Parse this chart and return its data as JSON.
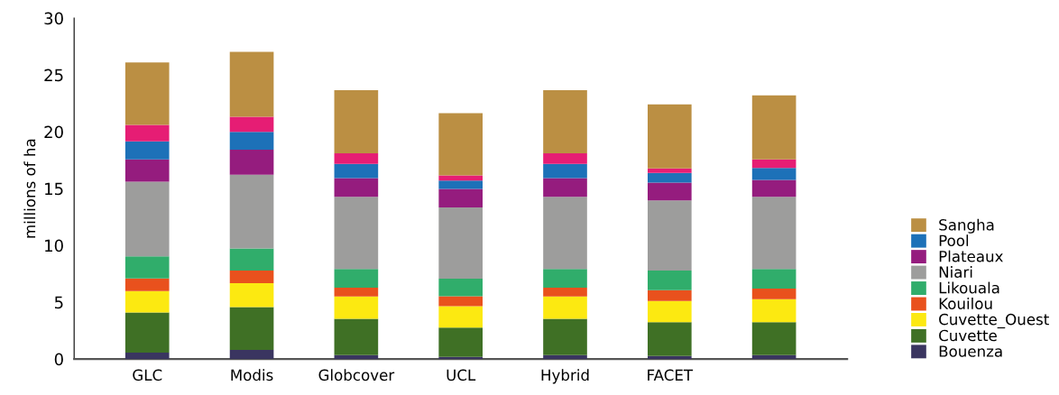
{
  "chart_data": {
    "type": "bar",
    "stacked": true,
    "ylabel": "millions of ha",
    "categories": [
      "GLC",
      "Modis",
      "Globcover",
      "UCL",
      "Hybrid",
      "FACET",
      null
    ],
    "ylim": [
      0,
      30
    ],
    "yticks": [
      0,
      5,
      10,
      15,
      20,
      25,
      30
    ],
    "grid": false,
    "legend": "right",
    "series": [
      {
        "name": "Bouenza",
        "color": "#3a3560",
        "values": [
          0.57,
          0.81,
          0.34,
          0.18,
          0.34,
          0.26,
          0.34
        ]
      },
      {
        "name": "Cuvette",
        "color": "#3f7025",
        "values": [
          3.53,
          3.76,
          3.21,
          2.59,
          3.21,
          2.98,
          2.9
        ]
      },
      {
        "name": "Cuvette_Ouest",
        "color": "#fce911",
        "values": [
          1.88,
          2.11,
          1.96,
          1.88,
          1.96,
          1.88,
          2.03
        ]
      },
      {
        "name": "Kouilou",
        "color": "#e9511d",
        "values": [
          1.12,
          1.1,
          0.78,
          0.88,
          0.78,
          0.94,
          0.94
        ]
      },
      {
        "name": "Likouala",
        "color": "#30ad6b",
        "values": [
          1.93,
          1.95,
          1.64,
          1.54,
          1.64,
          1.72,
          1.72
        ]
      },
      {
        "name": "Niari",
        "color": "#9d9d9c",
        "values": [
          6.57,
          6.5,
          6.35,
          6.27,
          6.35,
          6.18,
          6.35
        ]
      },
      {
        "name": "Plateaux",
        "color": "#951c7e",
        "values": [
          1.97,
          2.2,
          1.64,
          1.64,
          1.64,
          1.57,
          1.48
        ]
      },
      {
        "name": "Pool",
        "color": "#1d71b8",
        "values": [
          1.59,
          1.56,
          1.25,
          0.73,
          1.25,
          0.86,
          1.05
        ]
      },
      {
        "color": "#e61d74",
        "values": [
          1.44,
          1.33,
          0.94,
          0.45,
          0.94,
          0.39,
          0.76
        ]
      },
      {
        "name": "Sangha",
        "color": "#bb8f43",
        "values": [
          5.5,
          5.72,
          5.56,
          5.48,
          5.56,
          5.64,
          5.63
        ]
      }
    ]
  }
}
